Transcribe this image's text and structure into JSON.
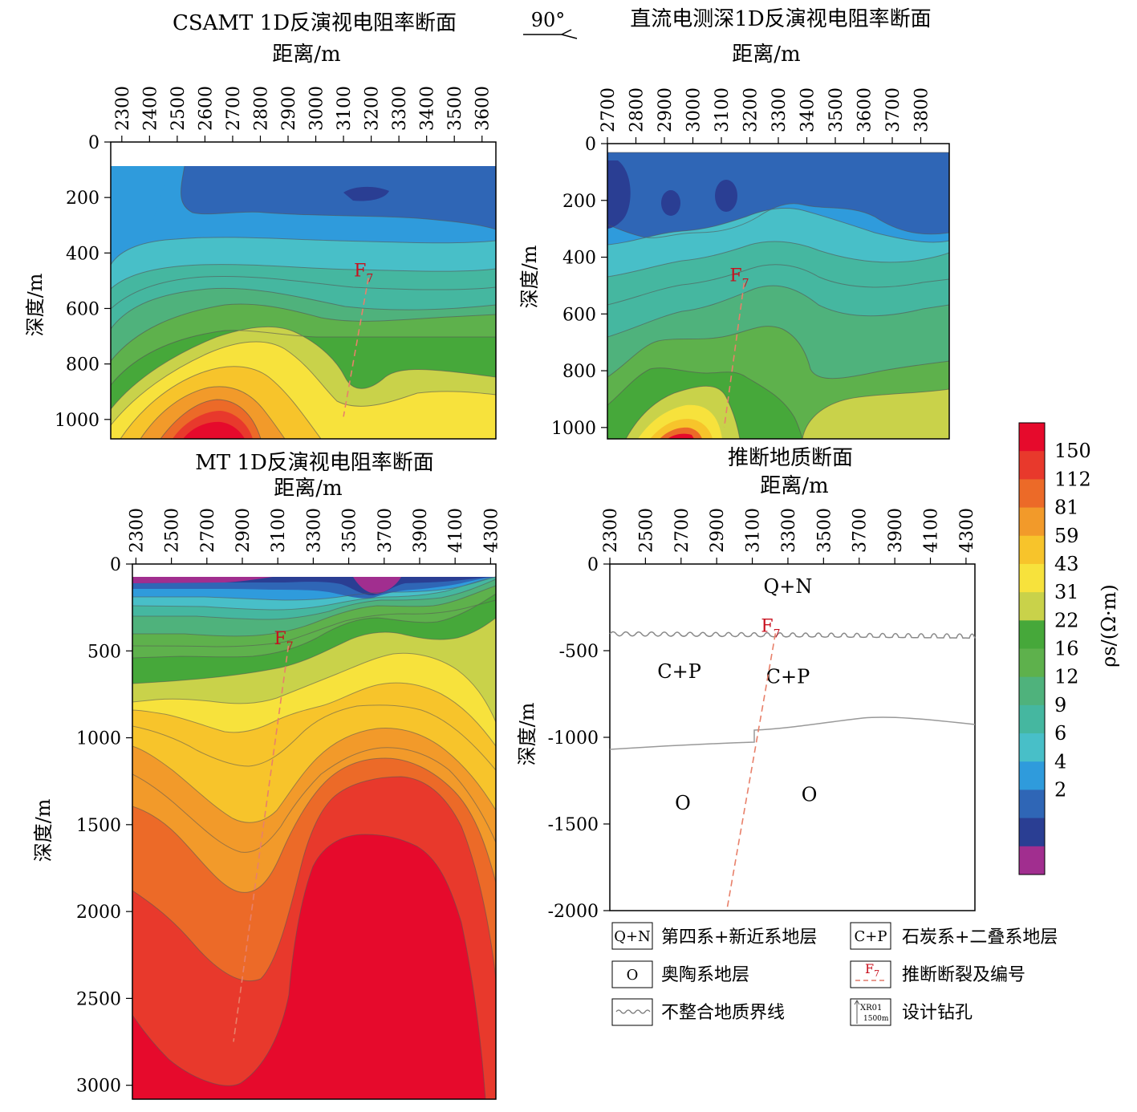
{
  "direction_label": "90°",
  "colorbar": {
    "title": "ρs/(Ω·m)",
    "levels": [
      "150",
      "112",
      "81",
      "59",
      "43",
      "31",
      "22",
      "16",
      "12",
      "9",
      "6",
      "4",
      "2"
    ],
    "colors": [
      "#e60a2c",
      "#e8392c",
      "#ec6a28",
      "#f29a2a",
      "#f7c42b",
      "#f7e23c",
      "#c9d24a",
      "#46a83a",
      "#5eb14c",
      "#4fb27c",
      "#45b7a0",
      "#48bfc8",
      "#2f9bdc",
      "#2f66b6",
      "#2a3e93",
      "#a12e8f"
    ]
  },
  "legend": {
    "items": [
      {
        "symbol": "Q+N",
        "label": "第四系+新近系地层"
      },
      {
        "symbol": "C+P",
        "label": "石炭系+二叠系地层"
      },
      {
        "symbol": "O",
        "label": "奥陶系地层"
      },
      {
        "symbol": "F7",
        "label": "推断断裂及编号"
      },
      {
        "symbol": "",
        "label": "不整合地质界线"
      },
      {
        "symbol": "XR01 1500m",
        "label": "设计钻孔"
      }
    ]
  },
  "chart_data": [
    {
      "type": "heatmap",
      "title": "CSAMT 1D反演视电阻率断面",
      "xlabel": "距离/m",
      "ylabel": "深度/m",
      "x_ticks": [
        2300,
        2400,
        2500,
        2600,
        2700,
        2800,
        2900,
        3000,
        3100,
        3200,
        3300,
        3400,
        3500,
        3600
      ],
      "y_ticks": [
        0,
        200,
        400,
        600,
        800,
        1000
      ],
      "xlim": [
        2260,
        3650
      ],
      "ylim": [
        0,
        1070
      ],
      "fault": {
        "label": "F7",
        "x_top": 3190,
        "y_top": 490,
        "x_bottom": 3100,
        "y_bottom": 990
      }
    },
    {
      "type": "heatmap",
      "title": "直流电测深1D反演视电阻率断面",
      "xlabel": "距离/m",
      "ylabel": "深度/m",
      "x_ticks": [
        2700,
        2800,
        2900,
        3000,
        3100,
        3200,
        3300,
        3400,
        3500,
        3600,
        3700,
        3800
      ],
      "y_ticks": [
        0,
        200,
        400,
        600,
        800,
        1000
      ],
      "xlim": [
        2700,
        3900
      ],
      "ylim": [
        0,
        1040
      ],
      "fault": {
        "label": "F7",
        "x_top": 3180,
        "y_top": 490,
        "x_bottom": 3110,
        "y_bottom": 1000
      }
    },
    {
      "type": "heatmap",
      "title": "MT 1D反演视电阻率断面",
      "xlabel": "距离/m",
      "ylabel": "深度/m",
      "x_ticks": [
        2300,
        2500,
        2700,
        2900,
        3100,
        3300,
        3500,
        3700,
        3900,
        4100,
        4300
      ],
      "y_ticks": [
        0,
        500,
        1000,
        1500,
        2000,
        2500,
        3000
      ],
      "xlim": [
        2280,
        4330
      ],
      "ylim": [
        0,
        3080
      ],
      "fault": {
        "label": "F7",
        "x_top": 3160,
        "y_top": 470,
        "x_bottom": 2850,
        "y_bottom": 2750
      }
    },
    {
      "type": "section",
      "title": "推断地质断面",
      "xlabel": "距离/m",
      "ylabel": "深度/m",
      "x_ticks": [
        2300,
        2500,
        2700,
        2900,
        3100,
        3300,
        3500,
        3700,
        3900,
        4100,
        4300
      ],
      "y_ticks": [
        0,
        -500,
        -1000,
        -1500,
        -2000
      ],
      "xlim": [
        2300,
        4350
      ],
      "ylim": [
        -2000,
        0
      ],
      "units": [
        {
          "label": "Q+N",
          "x": 3300,
          "y": -130
        },
        {
          "label": "C+P",
          "x": 2690,
          "y": -620
        },
        {
          "label": "C+P",
          "x": 3300,
          "y": -650
        },
        {
          "label": "O",
          "x": 2710,
          "y": -1380
        },
        {
          "label": "O",
          "x": 3420,
          "y": -1330
        }
      ],
      "fault": {
        "label": "F7",
        "x_top": 3230,
        "y_top": -400,
        "x_bottom": 2960,
        "y_bottom": -1980
      }
    }
  ]
}
